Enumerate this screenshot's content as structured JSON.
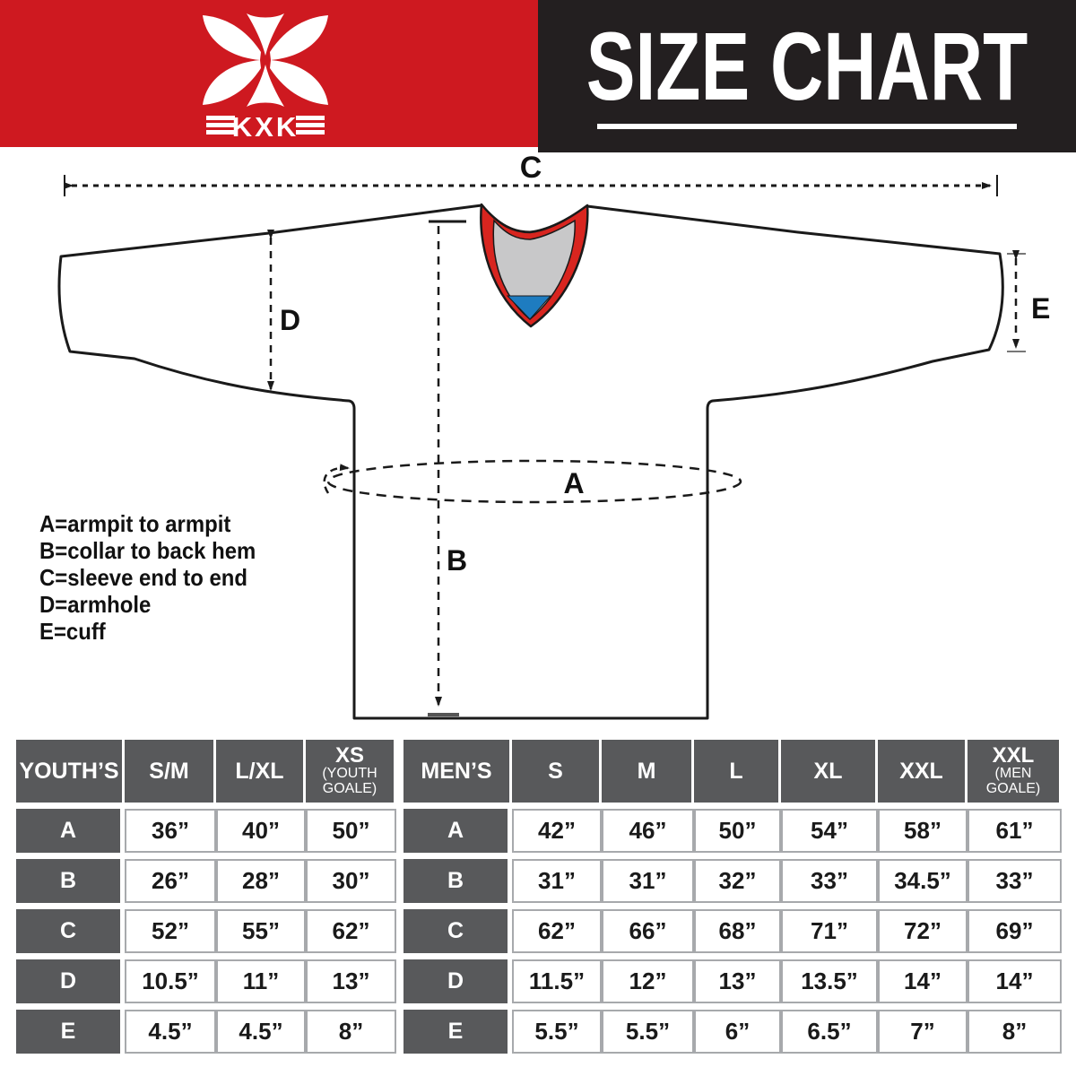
{
  "header": {
    "brand": "KXK",
    "title": "SIZE CHART",
    "colors": {
      "banner_red": "#ce1920",
      "banner_black": "#231f20"
    }
  },
  "legend": {
    "lines": [
      "A=armpit to armpit",
      "B=collar to back hem",
      "C=sleeve end to end",
      "D=armhole",
      "E=cuff"
    ]
  },
  "diagram": {
    "labels": {
      "a": "A",
      "b": "B",
      "c": "C",
      "d": "D",
      "e": "E"
    },
    "collar_colors": {
      "red": "#d8251f",
      "gray": "#c8c8c9",
      "blue": "#1e7cc0"
    }
  },
  "table": {
    "youth": {
      "header": "YOUTH’S",
      "columns": [
        {
          "label": "S/M",
          "sub": ""
        },
        {
          "label": "L/XL",
          "sub": ""
        },
        {
          "label": "XS",
          "sub": "(YOUTH\nGOALE)"
        }
      ]
    },
    "men": {
      "header": "MEN’S",
      "columns": [
        {
          "label": "S",
          "sub": ""
        },
        {
          "label": "M",
          "sub": ""
        },
        {
          "label": "L",
          "sub": ""
        },
        {
          "label": "XL",
          "sub": ""
        },
        {
          "label": "XXL",
          "sub": ""
        },
        {
          "label": "XXL",
          "sub": "(MEN\nGOALE)"
        }
      ]
    },
    "rows": [
      {
        "label": "A",
        "youth": [
          "36”",
          "40”",
          "50”"
        ],
        "men": [
          "42”",
          "46”",
          "50”",
          "54”",
          "58”",
          "61”"
        ]
      },
      {
        "label": "B",
        "youth": [
          "26”",
          "28”",
          "30”"
        ],
        "men": [
          "31”",
          "31”",
          "32”",
          "33”",
          "34.5”",
          "33”"
        ]
      },
      {
        "label": "C",
        "youth": [
          "52”",
          "55”",
          "62”"
        ],
        "men": [
          "62”",
          "66”",
          "68”",
          "71”",
          "72”",
          "69”"
        ]
      },
      {
        "label": "D",
        "youth": [
          "10.5”",
          "11”",
          "13”"
        ],
        "men": [
          "11.5”",
          "12”",
          "13”",
          "13.5”",
          "14”",
          "14”"
        ]
      },
      {
        "label": "E",
        "youth": [
          "4.5”",
          "4.5”",
          "8”"
        ],
        "men": [
          "5.5”",
          "5.5”",
          "6”",
          "6.5”",
          "7”",
          "8”"
        ]
      }
    ]
  }
}
